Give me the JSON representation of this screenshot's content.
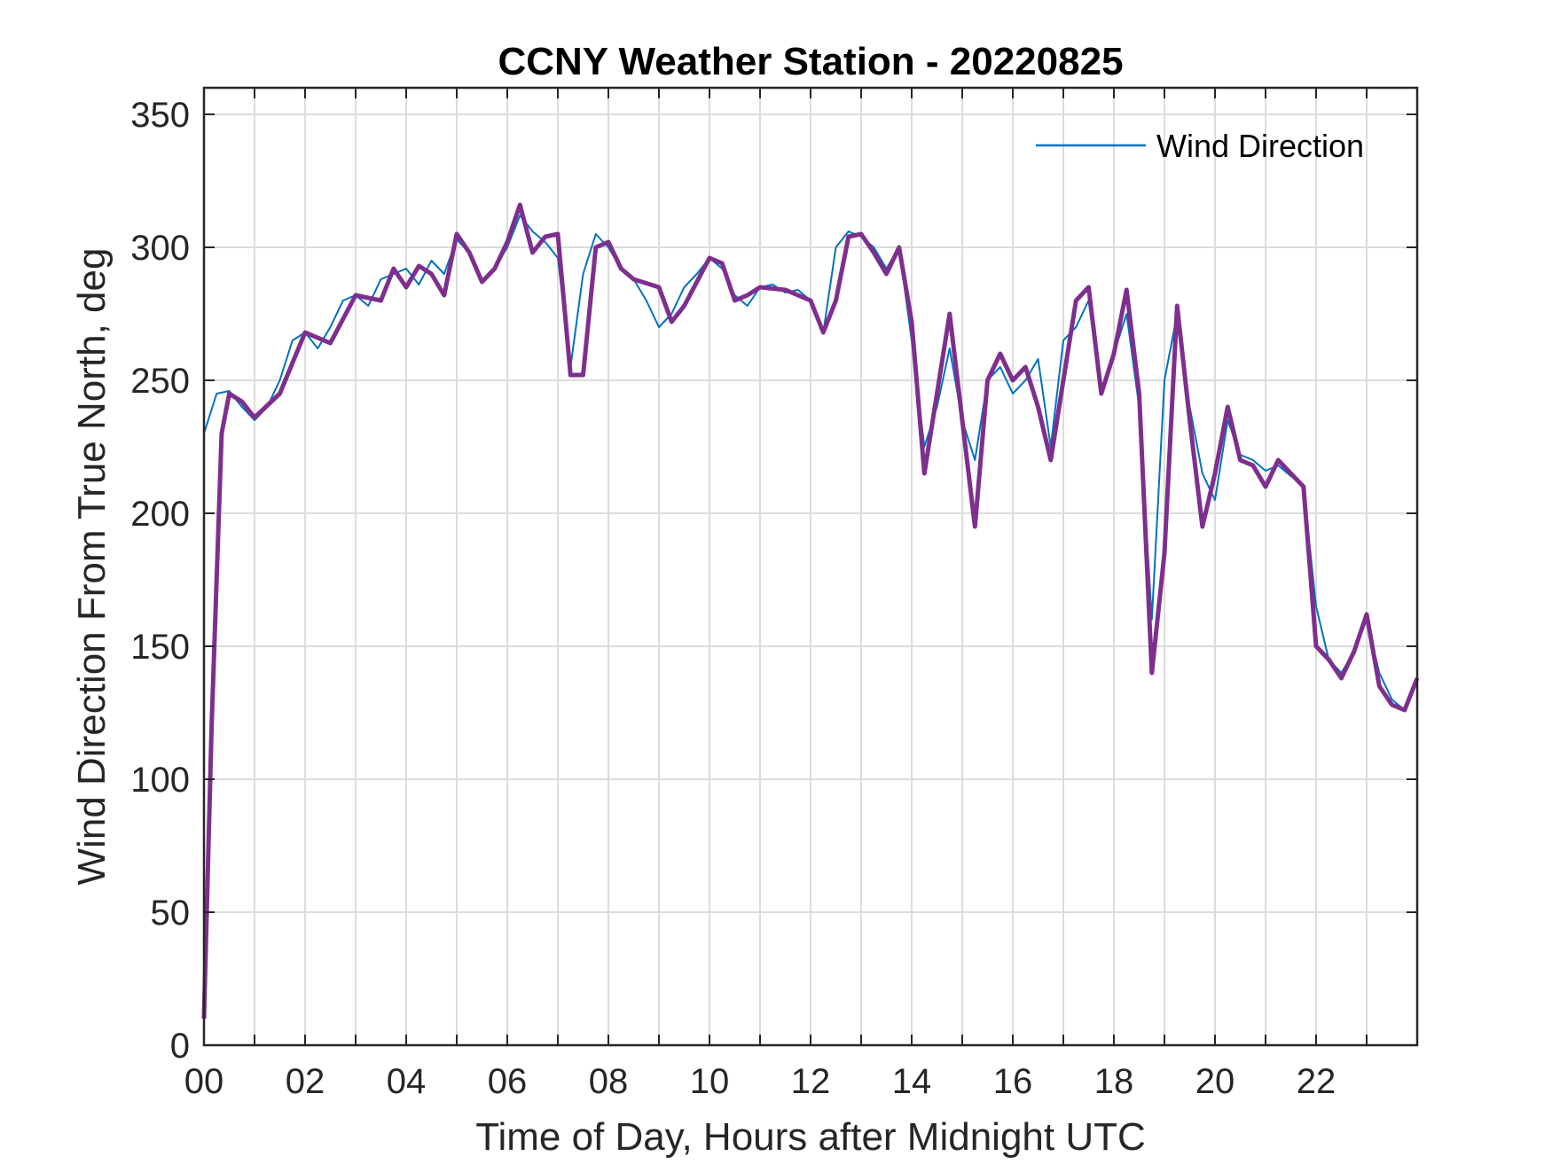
{
  "chart_data": {
    "type": "line",
    "title": "CCNY Weather Station - 20220825",
    "xlabel": "Time of Day, Hours after Midnight UTC",
    "ylabel": "Wind Direction From True North, deg",
    "xlim": [
      0,
      24
    ],
    "ylim": [
      0,
      360
    ],
    "x_ticks": [
      0,
      2,
      4,
      6,
      8,
      10,
      12,
      14,
      16,
      18,
      20,
      22
    ],
    "x_tick_labels": [
      "00",
      "02",
      "04",
      "06",
      "08",
      "10",
      "12",
      "14",
      "16",
      "18",
      "20",
      "22"
    ],
    "y_ticks": [
      0,
      50,
      100,
      150,
      200,
      250,
      300,
      350
    ],
    "y_tick_labels": [
      "0",
      "50",
      "100",
      "150",
      "200",
      "250",
      "300",
      "350"
    ],
    "grid": true,
    "legend_position": "top-right",
    "series": [
      {
        "name": "Wind Direction",
        "color": "#0072BD",
        "x": [
          0.0,
          0.25,
          0.5,
          0.75,
          1.0,
          1.25,
          1.5,
          1.75,
          2.0,
          2.25,
          2.5,
          2.75,
          3.0,
          3.25,
          3.5,
          3.75,
          4.0,
          4.25,
          4.5,
          4.75,
          5.0,
          5.25,
          5.5,
          5.75,
          6.0,
          6.25,
          6.5,
          6.75,
          7.0,
          7.25,
          7.5,
          7.75,
          8.0,
          8.25,
          8.5,
          8.75,
          9.0,
          9.25,
          9.5,
          9.75,
          10.0,
          10.25,
          10.5,
          10.75,
          11.0,
          11.25,
          11.5,
          11.75,
          12.0,
          12.25,
          12.5,
          12.75,
          13.0,
          13.25,
          13.5,
          13.75,
          14.0,
          14.25,
          14.5,
          14.75,
          15.0,
          15.25,
          15.5,
          15.75,
          16.0,
          16.25,
          16.5,
          16.75,
          17.0,
          17.25,
          17.5,
          17.75,
          18.0,
          18.25,
          18.5,
          18.75,
          19.0,
          19.25,
          19.5,
          19.75,
          20.0,
          20.25,
          20.5,
          20.75,
          21.0,
          21.25,
          21.5,
          21.75,
          22.0,
          22.25,
          22.5,
          22.75,
          23.0,
          23.25,
          23.5,
          23.75,
          24.0
        ],
        "values": [
          230,
          245,
          246,
          240,
          235,
          240,
          250,
          265,
          268,
          262,
          270,
          280,
          282,
          278,
          288,
          290,
          292,
          286,
          295,
          290,
          303,
          298,
          287,
          292,
          300,
          312,
          306,
          302,
          296,
          255,
          290,
          305,
          300,
          292,
          288,
          280,
          270,
          275,
          285,
          290,
          296,
          292,
          282,
          278,
          285,
          286,
          283,
          284,
          280,
          268,
          300,
          306,
          304,
          300,
          292,
          300,
          265,
          225,
          240,
          262,
          235,
          220,
          250,
          255,
          245,
          250,
          258,
          225,
          265,
          270,
          280,
          245,
          260,
          275,
          240,
          160,
          250,
          275,
          240,
          215,
          205,
          235,
          222,
          220,
          216,
          218,
          214,
          210,
          165,
          145,
          140,
          148,
          160,
          140,
          130,
          126,
          138
        ]
      },
      {
        "color": "#7E2F8E",
        "x": [
          0.0,
          0.15,
          0.35,
          0.5,
          0.75,
          1.0,
          1.5,
          2.0,
          2.5,
          3.0,
          3.5,
          3.75,
          4.0,
          4.25,
          4.5,
          4.75,
          5.0,
          5.25,
          5.5,
          5.75,
          6.0,
          6.25,
          6.5,
          6.75,
          7.0,
          7.25,
          7.5,
          7.75,
          8.0,
          8.25,
          8.5,
          9.0,
          9.25,
          9.5,
          10.0,
          10.25,
          10.5,
          10.75,
          11.0,
          11.5,
          12.0,
          12.25,
          12.5,
          12.75,
          13.0,
          13.25,
          13.5,
          13.75,
          14.0,
          14.25,
          14.5,
          14.75,
          15.0,
          15.25,
          15.5,
          15.75,
          16.0,
          16.25,
          16.5,
          16.75,
          17.0,
          17.25,
          17.5,
          17.75,
          18.0,
          18.25,
          18.5,
          18.75,
          19.0,
          19.25,
          19.5,
          19.75,
          20.0,
          20.25,
          20.5,
          20.75,
          21.0,
          21.25,
          21.5,
          21.75,
          22.0,
          22.25,
          22.5,
          22.75,
          23.0,
          23.25,
          23.5,
          23.75,
          24.0
        ],
        "values": [
          10,
          120,
          230,
          245,
          242,
          236,
          245,
          268,
          264,
          282,
          280,
          292,
          285,
          293,
          290,
          282,
          305,
          298,
          287,
          292,
          302,
          316,
          298,
          304,
          305,
          252,
          252,
          300,
          302,
          292,
          288,
          285,
          272,
          278,
          296,
          294,
          280,
          282,
          285,
          284,
          280,
          268,
          280,
          304,
          305,
          298,
          290,
          300,
          272,
          215,
          245,
          275,
          235,
          195,
          250,
          260,
          250,
          255,
          240,
          220,
          250,
          280,
          285,
          245,
          260,
          284,
          245,
          140,
          185,
          278,
          235,
          195,
          215,
          240,
          220,
          218,
          210,
          220,
          215,
          210,
          150,
          145,
          138,
          148,
          162,
          135,
          128,
          126,
          138
        ]
      }
    ]
  }
}
